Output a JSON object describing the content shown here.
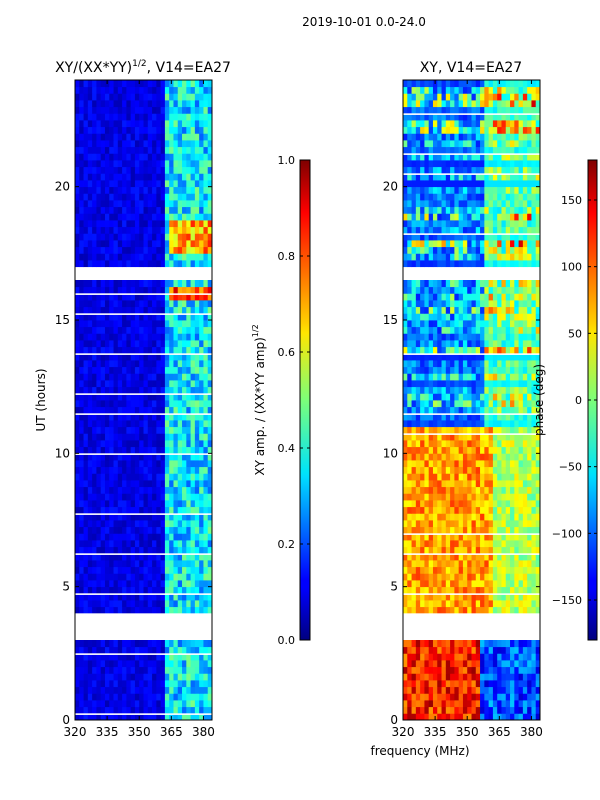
{
  "chart_data": {
    "type": "heatmap",
    "suptitle": "2019-10-01 0.0-24.0",
    "shared_xlabel": "frequency (MHz)",
    "panels": [
      {
        "id": "amp",
        "title": "XY/(XX*YY)",
        "title_exponent": "1/2",
        "title_suffix": ", V14=EA27",
        "ylabel": "UT (hours)",
        "xlim": [
          320,
          384
        ],
        "ylim": [
          0,
          24
        ],
        "xticks": [
          320,
          335,
          350,
          365,
          380
        ],
        "yticks": [
          0,
          5,
          10,
          15,
          20
        ],
        "colorbar": {
          "label": "XY amp. / (XX*YY amp)",
          "label_exponent": "1/2",
          "range": [
            0.0,
            1.0
          ],
          "ticks": [
            "0.0",
            "0.2",
            "0.4",
            "0.6",
            "0.8",
            "1.0"
          ],
          "tick_values": [
            0.0,
            0.2,
            0.4,
            0.6,
            0.8,
            1.0
          ]
        }
      },
      {
        "id": "phase",
        "title": "XY, V14=EA27",
        "ylabel": "",
        "xlim": [
          320,
          384
        ],
        "ylim": [
          0,
          24
        ],
        "xticks": [
          320,
          335,
          350,
          365,
          380
        ],
        "yticks": [
          0,
          5,
          10,
          15,
          20
        ],
        "colorbar": {
          "label": "phase (deg)",
          "range": [
            -180,
            180
          ],
          "ticks": [
            "−150",
            "−100",
            "−50",
            "0",
            "50",
            "100",
            "150"
          ],
          "tick_values": [
            -150,
            -100,
            -50,
            0,
            50,
            100,
            150
          ]
        }
      }
    ],
    "gaps_hours": [
      [
        3.0,
        3.9
      ],
      [
        16.6,
        17.1
      ]
    ],
    "colormap": "jet"
  }
}
